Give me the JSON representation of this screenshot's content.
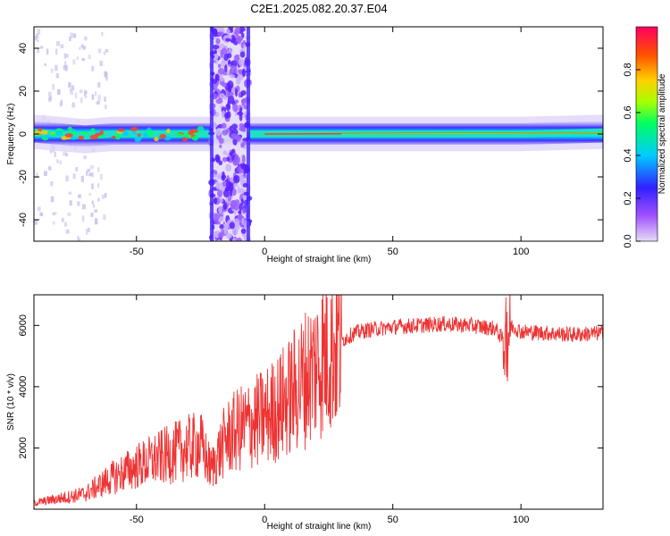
{
  "title": "C2E1.2025.082.20.37.E04",
  "chart_data": [
    {
      "type": "heatmap",
      "xlabel": "Height of straight line (km)",
      "ylabel": "Frequency (Hz)",
      "xlim": [
        -90,
        132
      ],
      "ylim": [
        -50,
        50
      ],
      "xticks": [
        -50,
        0,
        50,
        100
      ],
      "yticks": [
        -40,
        -20,
        0,
        20,
        40
      ],
      "colorbar": {
        "label": "Normalized spectral amplitude",
        "range": [
          0.0,
          1.0
        ],
        "ticks": [
          0.0,
          0.2,
          0.4,
          0.6,
          0.8
        ],
        "colormap": [
          "#d8d0f0",
          "#8a3cff",
          "#2020ff",
          "#00ddff",
          "#00ff66",
          "#b8ff00",
          "#ffcc00",
          "#ff5000",
          "#ff0060"
        ]
      },
      "ridge": [
        {
          "x": -90,
          "y": 1
        },
        {
          "x": -80,
          "y": 0
        },
        {
          "x": -70,
          "y": -1
        },
        {
          "x": -60,
          "y": 0
        },
        {
          "x": -50,
          "y": 0
        },
        {
          "x": -40,
          "y": 0
        },
        {
          "x": -30,
          "y": 0
        },
        {
          "x": -23,
          "y": 0
        },
        {
          "x": -5,
          "y": 0
        },
        {
          "x": 0,
          "y": 0
        },
        {
          "x": 50,
          "y": 0
        },
        {
          "x": 100,
          "y": 0
        },
        {
          "x": 132,
          "y": 1
        }
      ],
      "broadband_band": {
        "x_start": -21,
        "x_end": -6
      }
    },
    {
      "type": "line",
      "xlabel": "Height of straight line (km)",
      "ylabel": "SNR (10 * v/v)",
      "xlim": [
        -90,
        132
      ],
      "ylim": [
        0,
        7000
      ],
      "xticks": [
        -50,
        0,
        50,
        100
      ],
      "yticks": [
        2000,
        4000,
        6000
      ],
      "color": "#ee3333",
      "series": [
        {
          "x": [
            -90,
            -80,
            -70,
            -60,
            -50,
            -40,
            -30,
            -25,
            -21,
            -15,
            -10,
            -5,
            0,
            5,
            10,
            15,
            20,
            25,
            30,
            35,
            40,
            50,
            60,
            70,
            80,
            90,
            94,
            96,
            100,
            110,
            120,
            132
          ],
          "y": [
            200,
            350,
            500,
            1000,
            1400,
            1700,
            2000,
            2100,
            1300,
            2300,
            2600,
            2800,
            3000,
            3300,
            3700,
            4200,
            4700,
            5200,
            5500,
            5750,
            5850,
            5950,
            6000,
            6050,
            6000,
            5900,
            5400,
            6000,
            5800,
            5750,
            5700,
            5750
          ]
        }
      ]
    }
  ]
}
